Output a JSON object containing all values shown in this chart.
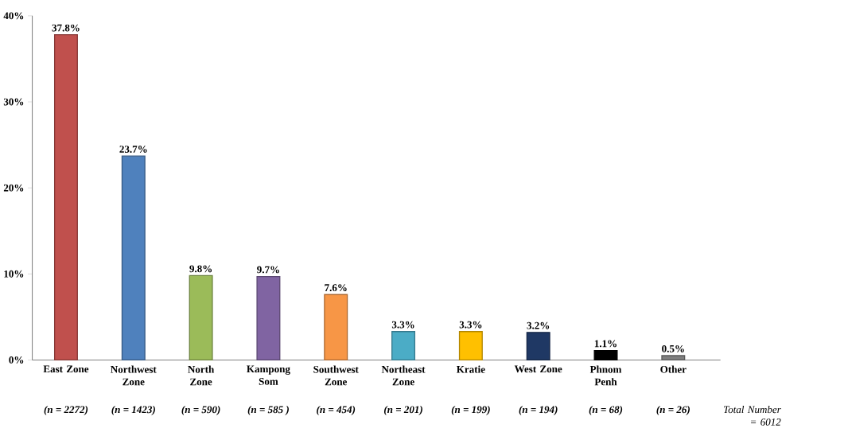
{
  "chart_data": {
    "type": "bar",
    "categories": [
      "East Zone",
      "Northwest Zone",
      "North Zone",
      "Kampong Som",
      "Southwest Zone",
      "Northeast Zone",
      "Kratie",
      "West Zone",
      "Phnom Penh",
      "Other"
    ],
    "values": [
      37.8,
      23.7,
      9.8,
      9.7,
      7.6,
      3.3,
      3.3,
      3.2,
      1.1,
      0.5
    ],
    "value_labels": [
      "37.8%",
      "23.7%",
      "9.8%",
      "9.7%",
      "7.6%",
      "3.3%",
      "3.3%",
      "3.2%",
      "1.1%",
      "0.5%"
    ],
    "colors": [
      "#c0504d",
      "#4f81bd",
      "#9bbb59",
      "#8064a2",
      "#f79646",
      "#4bacc6",
      "#ffc000",
      "#1f3864",
      "#000000",
      "#7f7f7f"
    ],
    "ylim": [
      0,
      40
    ],
    "yticks": [
      {
        "value": 0,
        "label": "0%"
      },
      {
        "value": 10,
        "label": "10%"
      },
      {
        "value": 20,
        "label": "20%"
      },
      {
        "value": 30,
        "label": "30%"
      },
      {
        "value": 40,
        "label": "40%"
      }
    ],
    "annotations": [
      "(n = 2272)",
      "(n = 1423)",
      "(n = 590)",
      "(n = 585 )",
      "(n = 454)",
      "(n = 201)",
      "(n = 199)",
      "(n = 194)",
      "(n = 68)",
      "(n = 26)",
      "Total Number = 6012"
    ]
  }
}
